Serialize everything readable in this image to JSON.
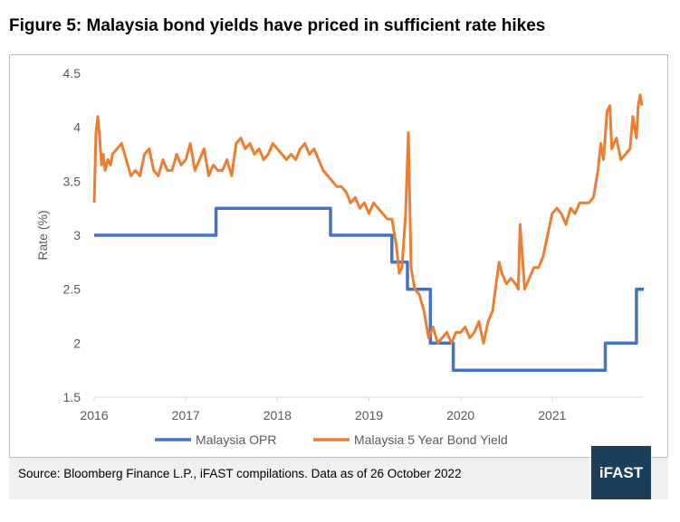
{
  "figure": {
    "title": "Figure 5: Malaysia bond yields have priced in sufficient rate hikes",
    "source": "Source: Bloomberg Finance L.P., iFAST compilations. Data as of 26 October 2022",
    "logo_text": "iFAST"
  },
  "chart_data": {
    "type": "line",
    "title": "Figure 5: Malaysia bond yields have priced in sufficient rate hikes",
    "xlabel": "",
    "ylabel": "Rate (%)",
    "xlim": [
      2016.0,
      2022.0
    ],
    "ylim": [
      1.5,
      4.5
    ],
    "x_ticks": [
      "2016",
      "2017",
      "2018",
      "2019",
      "2020",
      "2021"
    ],
    "x_tick_values": [
      2016,
      2017,
      2018,
      2019,
      2020,
      2021
    ],
    "y_ticks": [
      "1.5",
      "2",
      "2.5",
      "3",
      "3.5",
      "4",
      "4.5"
    ],
    "y_tick_values": [
      1.5,
      2,
      2.5,
      3,
      3.5,
      4,
      4.5
    ],
    "grid": false,
    "legend_position": "bottom",
    "series": [
      {
        "name": "Malaysia OPR",
        "color": "#4472c4",
        "step": true,
        "x": [
          2016.0,
          2017.33,
          2018.58,
          2019.25,
          2019.42,
          2019.67,
          2019.92,
          2021.58,
          2021.92,
          2022.0
        ],
        "values": [
          3.0,
          3.25,
          3.0,
          2.75,
          2.5,
          2.0,
          1.75,
          2.0,
          2.5,
          2.5
        ]
      },
      {
        "name": "Malaysia 5 Year Bond Yield",
        "color": "#ed7d31",
        "step": false,
        "x": [
          2016.0,
          2016.02,
          2016.04,
          2016.06,
          2016.08,
          2016.1,
          2016.12,
          2016.15,
          2016.18,
          2016.2,
          2016.25,
          2016.3,
          2016.35,
          2016.4,
          2016.45,
          2016.5,
          2016.55,
          2016.6,
          2016.65,
          2016.7,
          2016.75,
          2016.8,
          2016.85,
          2016.9,
          2016.95,
          2017.0,
          2017.05,
          2017.1,
          2017.15,
          2017.2,
          2017.25,
          2017.3,
          2017.35,
          2017.4,
          2017.45,
          2017.5,
          2017.55,
          2017.6,
          2017.65,
          2017.7,
          2017.75,
          2017.8,
          2017.85,
          2017.9,
          2017.95,
          2018.0,
          2018.05,
          2018.1,
          2018.15,
          2018.2,
          2018.25,
          2018.3,
          2018.35,
          2018.4,
          2018.45,
          2018.5,
          2018.55,
          2018.6,
          2018.65,
          2018.7,
          2018.75,
          2018.8,
          2018.85,
          2018.9,
          2018.95,
          2019.0,
          2019.05,
          2019.1,
          2019.15,
          2019.2,
          2019.25,
          2019.3,
          2019.33,
          2019.36,
          2019.4,
          2019.43,
          2019.46,
          2019.5,
          2019.55,
          2019.6,
          2019.65,
          2019.7,
          2019.75,
          2019.8,
          2019.85,
          2019.9,
          2019.95,
          2020.0,
          2020.05,
          2020.1,
          2020.15,
          2020.2,
          2020.25,
          2020.3,
          2020.35,
          2020.38,
          2020.42,
          2020.45,
          2020.5,
          2020.55,
          2020.6,
          2020.63,
          2020.65,
          2020.7,
          2020.75,
          2020.8,
          2020.85,
          2020.9,
          2020.95,
          2021.0,
          2021.05,
          2021.1,
          2021.15,
          2021.2,
          2021.25,
          2021.3,
          2021.35,
          2021.4,
          2021.45,
          2021.5,
          2021.53,
          2021.56,
          2021.6,
          2021.63,
          2021.65,
          2021.7,
          2021.75,
          2021.8,
          2021.85,
          2021.88,
          2021.92,
          2021.94,
          2021.96,
          2021.98
        ],
        "values": [
          3.3,
          3.95,
          4.1,
          3.9,
          3.65,
          3.75,
          3.6,
          3.7,
          3.65,
          3.75,
          3.8,
          3.85,
          3.7,
          3.55,
          3.6,
          3.55,
          3.75,
          3.8,
          3.6,
          3.55,
          3.7,
          3.6,
          3.6,
          3.75,
          3.65,
          3.7,
          3.85,
          3.6,
          3.7,
          3.8,
          3.55,
          3.65,
          3.6,
          3.6,
          3.7,
          3.55,
          3.85,
          3.9,
          3.8,
          3.85,
          3.75,
          3.8,
          3.7,
          3.75,
          3.85,
          3.8,
          3.75,
          3.7,
          3.75,
          3.7,
          3.8,
          3.85,
          3.75,
          3.8,
          3.7,
          3.6,
          3.55,
          3.5,
          3.45,
          3.45,
          3.4,
          3.3,
          3.35,
          3.25,
          3.3,
          3.2,
          3.3,
          3.25,
          3.2,
          3.15,
          3.15,
          2.9,
          2.65,
          2.7,
          3.2,
          3.95,
          2.7,
          2.5,
          2.45,
          2.3,
          2.05,
          2.15,
          2.0,
          2.05,
          2.1,
          2.0,
          2.1,
          2.1,
          2.15,
          2.05,
          2.1,
          2.2,
          2.0,
          2.2,
          2.3,
          2.5,
          2.75,
          2.65,
          2.55,
          2.6,
          2.55,
          2.5,
          3.1,
          2.5,
          2.6,
          2.7,
          2.7,
          2.8,
          3.0,
          3.2,
          3.25,
          3.2,
          3.1,
          3.25,
          3.2,
          3.3,
          3.3,
          3.3,
          3.35,
          3.6,
          3.85,
          3.7,
          4.15,
          4.2,
          3.8,
          3.9,
          3.7,
          3.75,
          3.8,
          4.1,
          3.9,
          4.2,
          4.3,
          4.2
        ]
      }
    ]
  }
}
